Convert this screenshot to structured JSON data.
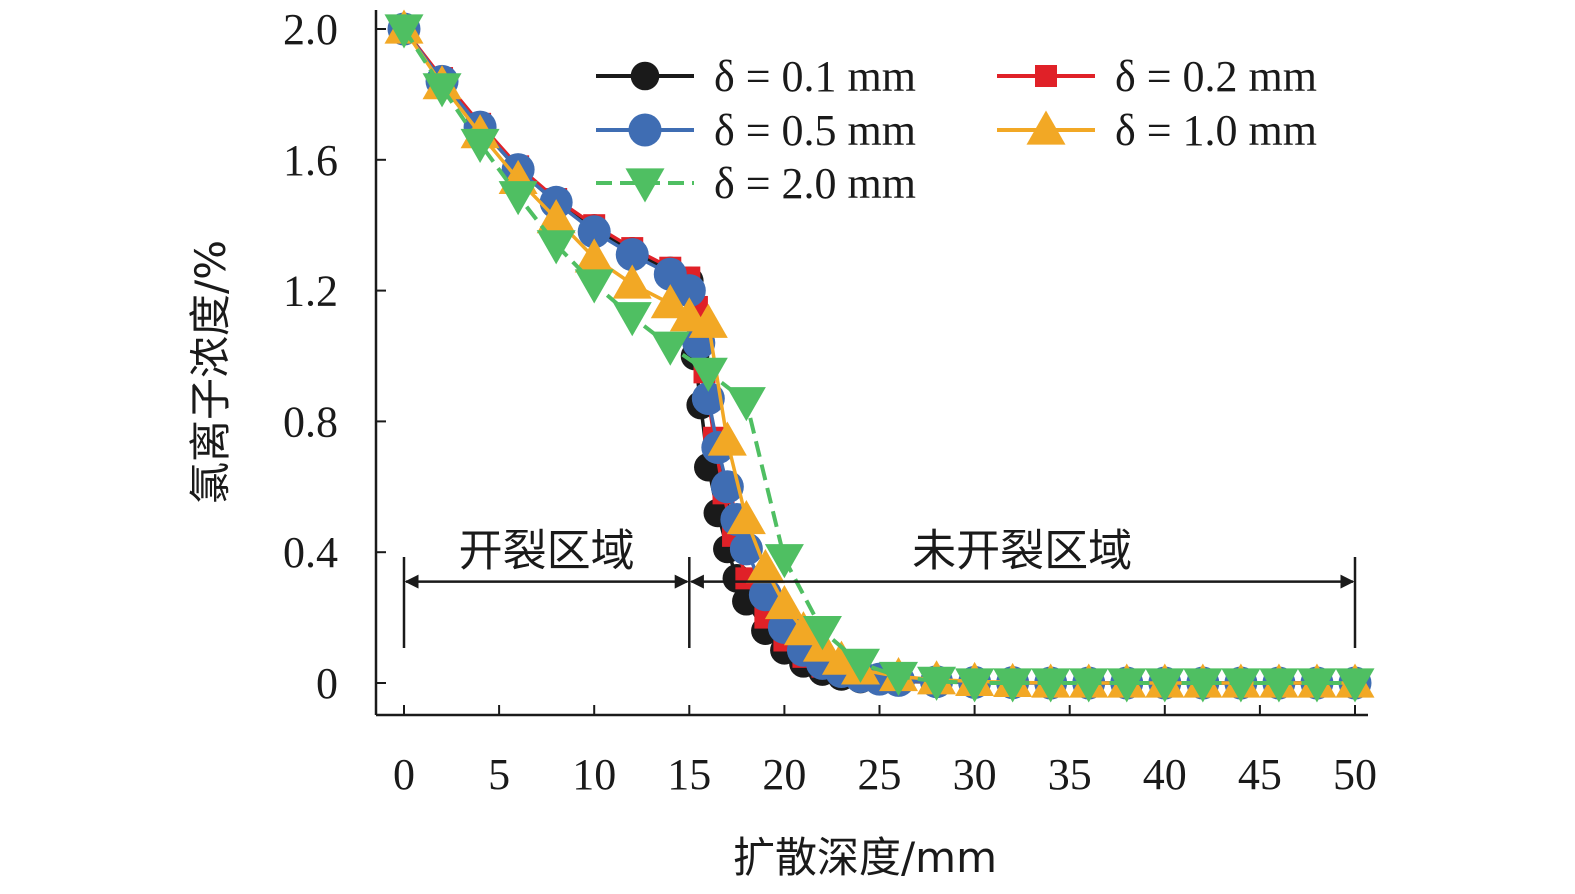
{
  "chart_data": {
    "type": "line",
    "xlabel": "扩散深度/mm",
    "ylabel": "氯离子浓度/%",
    "xlim": [
      0,
      50
    ],
    "ylim": [
      -0.1,
      2.0
    ],
    "xticks": [
      "0",
      "5",
      "10",
      "15",
      "20",
      "25",
      "30",
      "35",
      "40",
      "45",
      "50"
    ],
    "yticks": [
      "0",
      "0.4",
      "0.8",
      "1.2",
      "1.6",
      "2.0"
    ],
    "legend_position": "top-right",
    "series": [
      {
        "name": "δ = 0.1 mm",
        "color": "#1a1a1a",
        "marker": "circle",
        "x": [
          0,
          2,
          4,
          6,
          8,
          10,
          12,
          14,
          15,
          15.3,
          15.6,
          16,
          16.5,
          17,
          17.5,
          18,
          19,
          20,
          21,
          22,
          23,
          24,
          25,
          26,
          28,
          30,
          32,
          34,
          36,
          38,
          40,
          42,
          44,
          46,
          48,
          50
        ],
        "y": [
          2.0,
          1.84,
          1.7,
          1.57,
          1.47,
          1.39,
          1.32,
          1.26,
          1.23,
          1.0,
          0.85,
          0.66,
          0.52,
          0.41,
          0.32,
          0.25,
          0.16,
          0.1,
          0.06,
          0.035,
          0.02,
          0.012,
          0.008,
          0.005,
          0.003,
          0.002,
          0.001,
          0,
          0,
          0,
          0,
          0,
          0,
          0,
          0,
          0
        ]
      },
      {
        "name": "δ = 0.2 mm",
        "color": "#e02128",
        "marker": "square",
        "x": [
          0,
          2,
          4,
          6,
          8,
          10,
          12,
          14,
          15,
          15.4,
          15.8,
          16.3,
          16.8,
          17.3,
          18,
          19,
          20,
          21,
          22,
          23,
          24,
          25,
          26,
          28,
          30,
          32,
          34,
          36,
          38,
          40,
          42,
          44,
          46,
          48,
          50
        ],
        "y": [
          2.0,
          1.85,
          1.71,
          1.58,
          1.48,
          1.4,
          1.33,
          1.27,
          1.24,
          1.15,
          0.95,
          0.75,
          0.58,
          0.45,
          0.32,
          0.2,
          0.13,
          0.08,
          0.05,
          0.03,
          0.018,
          0.01,
          0.007,
          0.004,
          0.002,
          0.001,
          0,
          0,
          0,
          0,
          0,
          0,
          0,
          0,
          0
        ]
      },
      {
        "name": "δ = 0.5 mm",
        "color": "#3f6db3",
        "marker": "circle",
        "x": [
          0,
          2,
          4,
          6,
          8,
          10,
          12,
          14,
          15,
          15.5,
          16,
          16.5,
          17,
          17.5,
          18,
          19,
          20,
          21,
          22,
          23,
          24,
          25,
          26,
          28,
          30,
          32,
          34,
          36,
          38,
          40,
          42,
          44,
          46,
          48,
          50
        ],
        "y": [
          2.0,
          1.84,
          1.7,
          1.57,
          1.47,
          1.38,
          1.31,
          1.25,
          1.2,
          1.04,
          0.87,
          0.72,
          0.6,
          0.5,
          0.41,
          0.27,
          0.17,
          0.1,
          0.06,
          0.035,
          0.02,
          0.012,
          0.008,
          0.004,
          0.002,
          0.001,
          0,
          0,
          0,
          0,
          0,
          0,
          0,
          0,
          0
        ]
      },
      {
        "name": "δ = 1.0 mm",
        "color": "#f2a825",
        "marker": "triangle-up",
        "x": [
          0,
          2,
          4,
          6,
          8,
          10,
          12,
          14,
          15,
          16,
          17,
          18,
          19,
          20,
          21,
          22,
          23,
          24,
          26,
          28,
          30,
          32,
          34,
          36,
          38,
          40,
          42,
          44,
          46,
          48,
          50
        ],
        "y": [
          2.0,
          1.83,
          1.68,
          1.54,
          1.42,
          1.3,
          1.22,
          1.16,
          1.12,
          1.1,
          0.74,
          0.5,
          0.35,
          0.24,
          0.16,
          0.11,
          0.07,
          0.04,
          0.02,
          0.01,
          0.005,
          0.002,
          0,
          0,
          0,
          0,
          0,
          0,
          0,
          0,
          0
        ]
      },
      {
        "name": "δ = 2.0 mm",
        "color": "#4fbf62",
        "marker": "triangle-down",
        "x": [
          0,
          2,
          4,
          6,
          8,
          10,
          12,
          14,
          16,
          18,
          20,
          22,
          24,
          26,
          28,
          30,
          32,
          34,
          36,
          38,
          40,
          42,
          44,
          46,
          48,
          50
        ],
        "y": [
          2.0,
          1.82,
          1.65,
          1.49,
          1.34,
          1.22,
          1.12,
          1.03,
          0.95,
          0.86,
          0.38,
          0.16,
          0.06,
          0.02,
          0.005,
          0,
          0,
          0,
          0,
          0,
          0,
          0,
          0,
          0,
          0,
          0
        ]
      }
    ],
    "annotations": [
      {
        "text": "开裂区域",
        "x_from": 0,
        "x_to": 15,
        "y": 0.31
      },
      {
        "text": "未开裂区域",
        "x_from": 15,
        "x_to": 50,
        "y": 0.31
      }
    ]
  }
}
